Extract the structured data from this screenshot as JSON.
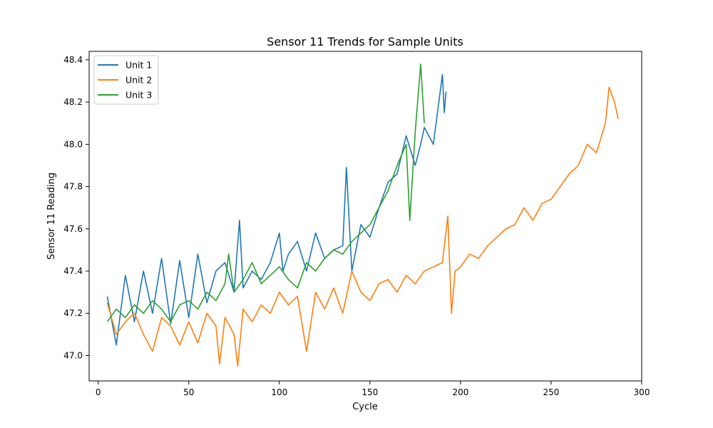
{
  "chart_data": {
    "type": "line",
    "title": "Sensor 11 Trends for Sample Units",
    "xlabel": "Cycle",
    "ylabel": "Sensor 11 Reading",
    "xlim": [
      -5,
      300
    ],
    "ylim": [
      46.88,
      48.44
    ],
    "xticks": [
      0,
      50,
      100,
      150,
      200,
      250,
      300
    ],
    "yticks": [
      47.0,
      47.2,
      47.4,
      47.6,
      47.8,
      48.0,
      48.2,
      48.4
    ],
    "xtick_labels": [
      "0",
      "50",
      "100",
      "150",
      "200",
      "250",
      "300"
    ],
    "ytick_labels": [
      "47.0",
      "47.2",
      "47.4",
      "47.6",
      "47.8",
      "48.0",
      "48.2",
      "48.4"
    ],
    "grid": false,
    "legend_position": "upper-left",
    "series": [
      {
        "name": "Unit 1",
        "color": "#1f77b4",
        "x": [
          5,
          10,
          15,
          20,
          25,
          30,
          35,
          40,
          45,
          50,
          55,
          60,
          65,
          70,
          75,
          78,
          80,
          85,
          90,
          95,
          100,
          102,
          105,
          110,
          115,
          120,
          125,
          130,
          135,
          137,
          140,
          145,
          150,
          155,
          160,
          165,
          170,
          175,
          178,
          180,
          185,
          190,
          191,
          192
        ],
        "y": [
          47.28,
          47.05,
          47.38,
          47.16,
          47.4,
          47.2,
          47.46,
          47.15,
          47.45,
          47.18,
          47.48,
          47.25,
          47.4,
          47.44,
          47.3,
          47.64,
          47.32,
          47.4,
          47.36,
          47.44,
          47.58,
          47.4,
          47.48,
          47.54,
          47.4,
          47.58,
          47.46,
          47.5,
          47.52,
          47.89,
          47.4,
          47.62,
          47.56,
          47.7,
          47.82,
          47.86,
          48.04,
          47.9,
          48.0,
          48.08,
          48.0,
          48.33,
          48.15,
          48.25
        ]
      },
      {
        "name": "Unit 2",
        "color": "#ff7f0e",
        "x": [
          5,
          10,
          15,
          20,
          25,
          30,
          35,
          40,
          45,
          50,
          55,
          60,
          65,
          67,
          70,
          75,
          77,
          80,
          85,
          90,
          95,
          100,
          105,
          110,
          115,
          120,
          125,
          130,
          135,
          140,
          145,
          150,
          155,
          160,
          165,
          170,
          175,
          180,
          185,
          190,
          193,
          195,
          197,
          200,
          205,
          210,
          215,
          220,
          225,
          230,
          235,
          240,
          245,
          250,
          255,
          260,
          265,
          270,
          275,
          280,
          282,
          285,
          287
        ],
        "y": [
          47.25,
          47.1,
          47.16,
          47.2,
          47.1,
          47.02,
          47.18,
          47.14,
          47.05,
          47.16,
          47.06,
          47.2,
          47.14,
          46.96,
          47.18,
          47.1,
          46.95,
          47.22,
          47.16,
          47.24,
          47.2,
          47.3,
          47.24,
          47.28,
          47.02,
          47.3,
          47.22,
          47.32,
          47.2,
          47.4,
          47.3,
          47.26,
          47.34,
          47.36,
          47.3,
          47.38,
          47.34,
          47.4,
          47.42,
          47.44,
          47.66,
          47.2,
          47.4,
          47.42,
          47.48,
          47.46,
          47.52,
          47.56,
          47.6,
          47.62,
          47.7,
          47.64,
          47.72,
          47.74,
          47.8,
          47.86,
          47.9,
          48.0,
          47.96,
          48.1,
          48.27,
          48.2,
          48.12
        ]
      },
      {
        "name": "Unit 3",
        "color": "#2ca02c",
        "x": [
          5,
          10,
          15,
          20,
          25,
          30,
          35,
          40,
          45,
          50,
          55,
          60,
          65,
          70,
          72,
          75,
          80,
          85,
          90,
          95,
          100,
          105,
          110,
          115,
          120,
          125,
          130,
          135,
          140,
          145,
          150,
          155,
          160,
          165,
          170,
          172,
          175,
          178,
          180
        ],
        "y": [
          47.16,
          47.22,
          47.18,
          47.24,
          47.2,
          47.26,
          47.22,
          47.16,
          47.24,
          47.26,
          47.22,
          47.3,
          47.26,
          47.34,
          47.48,
          47.3,
          47.36,
          47.44,
          47.34,
          47.38,
          47.42,
          47.36,
          47.32,
          47.44,
          47.4,
          47.46,
          47.5,
          47.48,
          47.54,
          47.58,
          47.62,
          47.7,
          47.78,
          47.9,
          48.0,
          47.64,
          48.06,
          48.38,
          48.1
        ]
      }
    ]
  }
}
